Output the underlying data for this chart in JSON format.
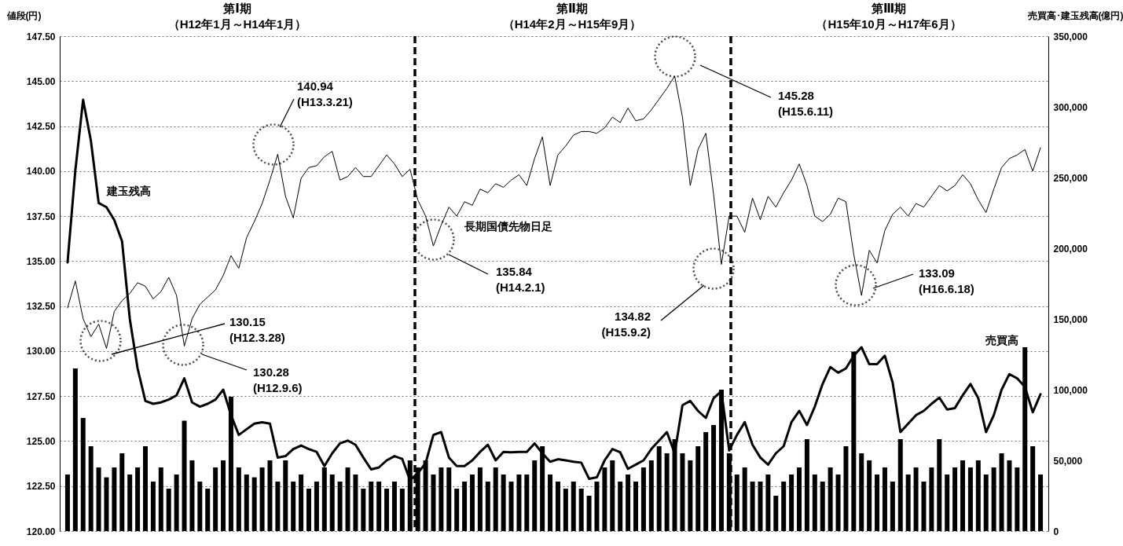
{
  "chart_data": {
    "type": "line",
    "ylabel": "値段(円)",
    "y2label": "売買高･建玉残高(億円)",
    "categories": [
      null,
      null,
      null,
      null,
      null,
      null,
      null,
      null,
      null,
      null,
      null,
      null,
      null,
      null,
      null,
      null,
      null,
      null,
      null,
      null,
      null,
      null,
      null,
      null,
      null,
      null,
      null,
      null,
      null,
      null,
      null,
      null,
      null,
      null,
      null,
      null,
      null,
      null,
      null,
      null,
      null,
      null,
      null,
      null,
      null,
      null,
      null,
      null,
      null,
      null,
      null,
      null,
      null,
      null,
      null,
      null,
      null,
      null,
      null,
      null,
      null,
      null,
      null,
      null,
      null,
      null,
      null,
      null,
      null,
      null,
      null,
      null,
      null,
      null,
      null,
      null,
      null,
      null,
      null,
      null,
      null,
      null,
      null,
      null,
      null,
      null,
      null,
      null,
      null,
      null,
      null,
      null,
      null,
      null,
      null,
      null,
      null,
      null,
      null,
      null,
      null,
      null,
      null,
      null,
      null,
      null,
      null,
      null,
      null,
      null,
      null,
      null,
      null,
      null,
      null,
      null,
      null,
      null,
      null,
      null,
      null,
      null,
      null,
      null,
      null,
      null
    ],
    "series": [
      {
        "name": "長期国債先物日足",
        "color": "#000000",
        "values": [
          132.4,
          133.9,
          131.8,
          130.8,
          131.5,
          130.15,
          132.2,
          132.8,
          133.2,
          133.8,
          133.6,
          132.9,
          133.3,
          134.1,
          133.1,
          130.28,
          131.8,
          132.6,
          133,
          133.4,
          134.2,
          135.3,
          134.6,
          136.3,
          137.2,
          138.2,
          139.5,
          140.94,
          138.6,
          137.4,
          139.6,
          140.2,
          140.3,
          140.8,
          141.1,
          139.5,
          139.7,
          140.2,
          139.7,
          139.7,
          140.3,
          140.9,
          140.4,
          139.7,
          140.1,
          138.4,
          137.5,
          135.84,
          137,
          138,
          137.5,
          138.3,
          138.1,
          139,
          138.8,
          139.3,
          139.1,
          139.5,
          139.8,
          139.2,
          140.7,
          141.9,
          139.2,
          140.9,
          141.4,
          142,
          142.2,
          142.2,
          142.1,
          142.4,
          143,
          142.7,
          143.5,
          142.8,
          142.9,
          143.4,
          144,
          144.6,
          145.28,
          143,
          139.2,
          141.2,
          142.1,
          138.7,
          134.82,
          137.5,
          137.5,
          136.6,
          138.5,
          137.3,
          138.6,
          138,
          138.8,
          139.5,
          140.4,
          139.2,
          137.5,
          137.2,
          137.6,
          138.5,
          138.3,
          135.4,
          133.09,
          135.6,
          134.9,
          136.7,
          137.6,
          138,
          137.5,
          138.2,
          138,
          138.6,
          139.2,
          138.9,
          139.2,
          139.8,
          139.3,
          138.4,
          137.7,
          139,
          140.2,
          140.7,
          140.9,
          141.2,
          140,
          141.3
        ]
      },
      {
        "name": "建玉残高",
        "axis": "y2",
        "color": "#000000",
        "values": [
          190000,
          255000,
          305000,
          276000,
          232000,
          229000,
          220000,
          205000,
          150000,
          115000,
          92000,
          90000,
          91000,
          93000,
          96000,
          108000,
          91000,
          88000,
          90000,
          93000,
          100000,
          82000,
          68000,
          72000,
          76000,
          77000,
          76000,
          52000,
          53000,
          58000,
          60500,
          58000,
          56000,
          46000,
          55000,
          62000,
          64000,
          61000,
          52000,
          43600,
          45000,
          50000,
          53000,
          51000,
          36000,
          41000,
          48000,
          68000,
          70000,
          52000,
          46000,
          46000,
          50000,
          56000,
          61000,
          50000,
          56000,
          55700,
          56000,
          56000,
          62000,
          55000,
          49000,
          50800,
          50000,
          49000,
          48400,
          37000,
          38000,
          50000,
          58000,
          55700,
          44000,
          47000,
          50000,
          58000,
          64000,
          70000,
          55000,
          89000,
          92000,
          85000,
          80000,
          94000,
          99000,
          57000,
          68000,
          77000,
          61000,
          52000,
          47000,
          55000,
          60000,
          77000,
          85000,
          75000,
          88000,
          104000,
          116000,
          112000,
          115000,
          124000,
          130000,
          118000,
          118000,
          124000,
          105000,
          70000,
          76000,
          82000,
          85000,
          90000,
          94400,
          86000,
          87000,
          96000,
          104000,
          94000,
          70000,
          82000,
          100000,
          111000,
          108000,
          102000,
          84000,
          96800
        ]
      },
      {
        "name": "売買高",
        "type": "bar",
        "axis": "y2",
        "color": "#000000",
        "values": [
          40000,
          115000,
          80000,
          60000,
          45000,
          38000,
          45000,
          55000,
          40000,
          45000,
          60000,
          35000,
          45000,
          30000,
          40000,
          78000,
          50000,
          35000,
          30000,
          45000,
          50000,
          95000,
          45000,
          40000,
          38000,
          45000,
          50000,
          35000,
          50000,
          35000,
          40000,
          30000,
          35000,
          45000,
          40000,
          35000,
          45000,
          40000,
          30000,
          35000,
          35000,
          30000,
          35000,
          30000,
          50000,
          45000,
          50000,
          40000,
          45000,
          45000,
          30000,
          35000,
          40000,
          45000,
          35000,
          45000,
          40000,
          35000,
          40000,
          40000,
          50000,
          60000,
          40000,
          35000,
          30000,
          35000,
          30000,
          25000,
          35000,
          45000,
          50000,
          35000,
          40000,
          35000,
          45000,
          50000,
          60000,
          55000,
          65000,
          55000,
          50000,
          60000,
          70000,
          75000,
          100000,
          55000,
          40000,
          45000,
          35000,
          35000,
          40000,
          25000,
          35000,
          40000,
          45000,
          65000,
          40000,
          35000,
          45000,
          40000,
          60000,
          127000,
          55000,
          50000,
          40000,
          45000,
          35000,
          65000,
          40000,
          45000,
          35000,
          45000,
          65000,
          40000,
          45000,
          50000,
          45000,
          50000,
          40000,
          45000,
          55000,
          50000,
          45000,
          130000,
          60000,
          40000
        ]
      }
    ],
    "ylim": [
      120,
      147.5
    ],
    "yticks": [
      {
        "value": 120,
        "label": "120.00"
      },
      {
        "value": 122.5,
        "label": "122.50"
      },
      {
        "value": 125,
        "label": "125.00"
      },
      {
        "value": 127.5,
        "label": "127.50"
      },
      {
        "value": 130,
        "label": "130.00"
      },
      {
        "value": 132.5,
        "label": "132.50"
      },
      {
        "value": 135,
        "label": "135.00"
      },
      {
        "value": 137.5,
        "label": "137.50"
      },
      {
        "value": 140,
        "label": "140.00"
      },
      {
        "value": 142.5,
        "label": "142.50"
      },
      {
        "value": 145,
        "label": "145.00"
      },
      {
        "value": 147.5,
        "label": "147.50"
      }
    ],
    "y2lim": [
      0,
      350000
    ],
    "y2ticks": [
      0,
      {
        "value": 50000,
        "label": "50,000"
      },
      {
        "value": 100000,
        "label": "100,000"
      },
      {
        "value": 150000,
        "label": "150,000"
      },
      {
        "value": 200000,
        "label": "200,000"
      },
      {
        "value": 250000,
        "label": "250,000"
      },
      {
        "value": 300000,
        "label": "300,000"
      },
      {
        "value": 350000,
        "label": "350,000"
      }
    ],
    "grid": "y",
    "annotations": [
      "第Ⅰ期",
      "（H12年1月～H14年1月）",
      "第Ⅱ期",
      "（H14年2月～H15年9月）",
      "第Ⅲ期",
      "（H15年10月～H17年6月）",
      "140.94\n(H13.3.21)",
      "145.28\n(H15.6.11)",
      "135.84\n(H14.2.1)",
      "134.82\n(H15.9.2)",
      "133.09\n(H16.6.18)",
      "130.15\n(H12.3.28)",
      "130.28\n(H12.9.6)"
    ]
  }
}
